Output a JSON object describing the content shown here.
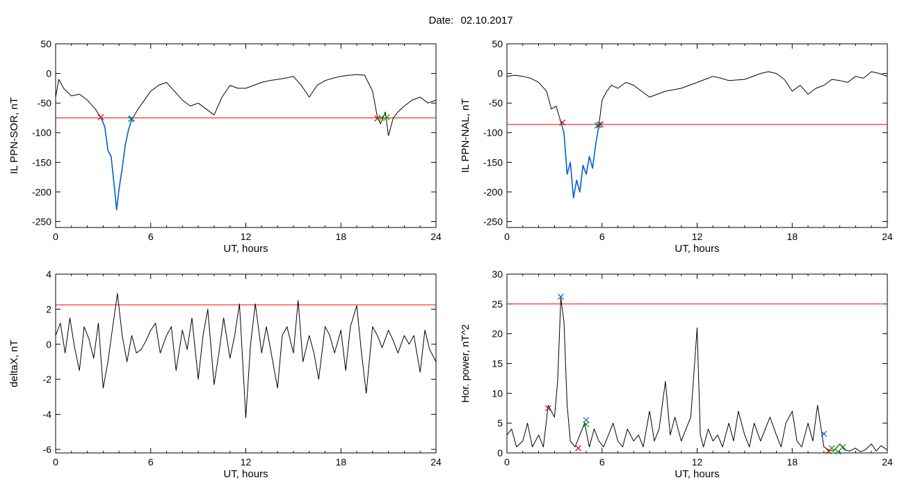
{
  "figure": {
    "date_label": "Date:",
    "date_value": "02.10.2017"
  },
  "chart_data": [
    {
      "type": "line",
      "xlabel": "UT, hours",
      "ylabel": "IL PPN-SOR, nT",
      "xlim": [
        0,
        24
      ],
      "ylim": [
        -260,
        50
      ],
      "xticks": [
        0,
        6,
        12,
        18,
        24
      ],
      "yticks": [
        50,
        0,
        -50,
        -100,
        -150,
        -200,
        -250
      ],
      "threshold": -75,
      "threshold_color": "#ff0000",
      "series": [
        {
          "color": "#000000",
          "x": [
            0,
            0.2,
            0.5,
            1.0,
            1.5,
            2.0,
            2.5,
            2.85,
            3.1,
            3.3,
            3.5,
            3.7,
            3.85,
            4.0,
            4.2,
            4.4,
            4.6,
            4.8,
            5.2,
            5.6,
            6.0,
            6.5,
            7.0,
            7.5,
            8.0,
            8.5,
            9.0,
            9.5,
            10.0,
            10.5,
            11.0,
            11.5,
            12.0,
            12.5,
            13.0,
            13.5,
            14.0,
            14.5,
            15.0,
            15.5,
            16.0,
            16.5,
            17.0,
            17.5,
            18.0,
            18.5,
            19.0,
            19.5,
            20.0,
            20.3,
            20.5,
            20.8,
            21.0,
            21.3,
            21.6,
            22.0,
            22.5,
            23.0,
            23.5,
            24.0
          ],
          "values": [
            -40,
            -10,
            -25,
            -38,
            -35,
            -45,
            -60,
            -74,
            -90,
            -130,
            -140,
            -190,
            -230,
            -195,
            -160,
            -120,
            -95,
            -78,
            -60,
            -45,
            -30,
            -20,
            -15,
            -30,
            -45,
            -55,
            -50,
            -60,
            -70,
            -40,
            -20,
            -25,
            -25,
            -20,
            -15,
            -12,
            -10,
            -8,
            -5,
            -20,
            -40,
            -20,
            -12,
            -8,
            -5,
            -3,
            -2,
            -3,
            -30,
            -74,
            -85,
            -65,
            -105,
            -75,
            -65,
            -55,
            -45,
            -40,
            -50,
            -45
          ]
        },
        {
          "color": "#0060d0",
          "x": [
            2.85,
            3.1,
            3.3,
            3.5,
            3.7,
            3.85,
            4.0,
            4.2,
            4.4,
            4.6,
            4.8
          ],
          "values": [
            -74,
            -90,
            -130,
            -140,
            -190,
            -230,
            -195,
            -160,
            -120,
            -95,
            -78
          ]
        }
      ],
      "markers": [
        {
          "x": 2.85,
          "y": -74,
          "color": "#d00000"
        },
        {
          "x": 4.75,
          "y": -77,
          "color": "#00a000"
        },
        {
          "x": 4.8,
          "y": -76,
          "color": "#0060d0"
        },
        {
          "x": 20.3,
          "y": -76,
          "color": "#d00000"
        },
        {
          "x": 20.55,
          "y": -75,
          "color": "#00a000"
        },
        {
          "x": 20.9,
          "y": -74,
          "color": "#00a000"
        }
      ]
    },
    {
      "type": "line",
      "xlabel": "UT, hours",
      "ylabel": "IL PPN-NAL, nT",
      "xlim": [
        0,
        24
      ],
      "ylim": [
        -260,
        50
      ],
      "xticks": [
        0,
        6,
        12,
        18,
        24
      ],
      "yticks": [
        50,
        0,
        -50,
        -100,
        -150,
        -200,
        -250
      ],
      "threshold": -86,
      "threshold_color": "#ff0000",
      "series": [
        {
          "color": "#000000",
          "x": [
            0,
            0.5,
            1.0,
            1.5,
            2.0,
            2.5,
            2.8,
            3.1,
            3.4,
            3.6,
            3.8,
            4.0,
            4.2,
            4.4,
            4.6,
            4.8,
            5.0,
            5.2,
            5.4,
            5.6,
            5.8,
            6.0,
            6.3,
            6.6,
            7.0,
            7.5,
            8.0,
            8.5,
            9.0,
            9.5,
            10.0,
            11.0,
            12.0,
            12.5,
            13.0,
            13.5,
            14.0,
            15.0,
            16.0,
            16.5,
            17.0,
            17.5,
            18.0,
            18.5,
            19.0,
            19.5,
            20.0,
            20.5,
            21.0,
            21.5,
            22.0,
            22.5,
            23.0,
            23.5,
            24.0
          ],
          "values": [
            -5,
            -3,
            -5,
            -8,
            -15,
            -30,
            -60,
            -55,
            -82,
            -100,
            -170,
            -150,
            -210,
            -180,
            -200,
            -155,
            -170,
            -140,
            -160,
            -120,
            -88,
            -45,
            -30,
            -20,
            -25,
            -15,
            -20,
            -30,
            -40,
            -35,
            -30,
            -25,
            -15,
            -10,
            -5,
            -8,
            -12,
            -10,
            0,
            3,
            0,
            -10,
            -30,
            -20,
            -35,
            -25,
            -20,
            -10,
            -12,
            -15,
            -5,
            -8,
            3,
            0,
            -5
          ]
        },
        {
          "color": "#0060d0",
          "x": [
            3.4,
            3.6,
            3.8,
            4.0,
            4.2,
            4.4,
            4.6,
            4.8,
            5.0,
            5.2,
            5.4,
            5.6,
            5.8
          ],
          "values": [
            -82,
            -100,
            -170,
            -150,
            -210,
            -180,
            -200,
            -155,
            -170,
            -140,
            -160,
            -120,
            -88
          ]
        }
      ],
      "markers": [
        {
          "x": 3.5,
          "y": -83,
          "color": "#d00000"
        },
        {
          "x": 5.7,
          "y": -88,
          "color": "#00a000"
        },
        {
          "x": 5.8,
          "y": -87,
          "color": "#0060d0"
        },
        {
          "x": 5.9,
          "y": -86,
          "color": "#d00000"
        }
      ]
    },
    {
      "type": "line",
      "xlabel": "UT, hours",
      "ylabel": "deltaX, nT",
      "xlim": [
        0,
        24
      ],
      "ylim": [
        -6.2,
        4
      ],
      "xticks": [
        0,
        6,
        12,
        18,
        24
      ],
      "yticks": [
        4,
        2,
        0,
        -2,
        -4,
        -6
      ],
      "threshold": 2.25,
      "threshold_color": "#ff0000",
      "series": [
        {
          "color": "#000000",
          "x": [
            0,
            0.3,
            0.6,
            0.9,
            1.2,
            1.5,
            1.8,
            2.1,
            2.4,
            2.7,
            3.0,
            3.3,
            3.6,
            3.9,
            4.2,
            4.5,
            4.8,
            5.1,
            5.4,
            5.7,
            6.0,
            6.3,
            6.6,
            7.0,
            7.3,
            7.6,
            8.0,
            8.3,
            8.6,
            9.0,
            9.3,
            9.6,
            10.0,
            10.3,
            10.6,
            11.0,
            11.3,
            11.6,
            12.0,
            12.3,
            12.6,
            13.0,
            13.3,
            13.6,
            14.0,
            14.3,
            14.6,
            15.0,
            15.3,
            15.6,
            16.0,
            16.3,
            16.6,
            17.0,
            17.3,
            17.6,
            18.0,
            18.3,
            18.6,
            19.0,
            19.3,
            19.6,
            20.0,
            20.3,
            20.6,
            21.0,
            21.3,
            21.6,
            22.0,
            22.3,
            22.6,
            23.0,
            23.3,
            23.6,
            24.0
          ],
          "values": [
            0.5,
            1.2,
            -0.5,
            1.5,
            -0.2,
            -1.5,
            1.0,
            0.3,
            -0.8,
            1.2,
            -2.5,
            -1.0,
            1.0,
            2.9,
            0.5,
            -1.0,
            0.5,
            -0.5,
            -0.3,
            0.2,
            0.8,
            1.2,
            -0.5,
            0.5,
            1.0,
            -1.5,
            0.8,
            -0.3,
            1.5,
            -2.0,
            0.5,
            2.0,
            -2.3,
            -0.5,
            1.5,
            -0.8,
            0.5,
            2.3,
            -4.2,
            0.0,
            2.3,
            -0.5,
            1.0,
            -0.5,
            -2.5,
            0.5,
            1.0,
            -0.5,
            2.5,
            -1.0,
            0.5,
            -0.5,
            -2.0,
            1.0,
            0.5,
            -0.5,
            0.8,
            -1.5,
            1.0,
            2.2,
            -0.5,
            -2.8,
            1.0,
            0.5,
            -0.2,
            0.8,
            0.2,
            -0.5,
            0.5,
            0.0,
            0.5,
            -1.6,
            0.8,
            -0.3,
            -1.0
          ]
        }
      ],
      "markers": []
    },
    {
      "type": "line",
      "xlabel": "UT, hours",
      "ylabel": "Hor. power, nT^2",
      "xlim": [
        0,
        24
      ],
      "ylim": [
        0,
        30
      ],
      "xticks": [
        0,
        6,
        12,
        18,
        24
      ],
      "yticks": [
        30,
        25,
        20,
        15,
        10,
        5,
        0
      ],
      "threshold": 25,
      "threshold_color": "#ff0000",
      "series": [
        {
          "color": "#000000",
          "x": [
            0,
            0.3,
            0.6,
            1.0,
            1.3,
            1.6,
            2.0,
            2.3,
            2.6,
            3.0,
            3.2,
            3.4,
            3.6,
            3.8,
            4.0,
            4.3,
            4.6,
            4.9,
            5.2,
            5.5,
            5.8,
            6.1,
            6.4,
            6.7,
            7.0,
            7.3,
            7.6,
            8.0,
            8.3,
            8.6,
            9.0,
            9.3,
            9.6,
            10.0,
            10.3,
            10.6,
            11.0,
            11.3,
            11.6,
            12.0,
            12.2,
            12.4,
            12.7,
            13.0,
            13.3,
            13.6,
            14.0,
            14.3,
            14.6,
            15.0,
            15.3,
            15.6,
            16.0,
            16.3,
            16.6,
            17.0,
            17.3,
            17.6,
            18.0,
            18.3,
            18.6,
            19.0,
            19.3,
            19.6,
            20.0,
            20.3,
            20.6,
            21.0,
            21.3,
            21.6,
            22.0,
            22.3,
            22.6,
            23.0,
            23.3,
            23.6,
            24.0
          ],
          "values": [
            3,
            4,
            1,
            2,
            5,
            1,
            3,
            1,
            8,
            6,
            12,
            26,
            22,
            8,
            2,
            1,
            3,
            5,
            1,
            4,
            2,
            1,
            3,
            5,
            2,
            1,
            4,
            2,
            3,
            1,
            7,
            2,
            4,
            12,
            3,
            6,
            2,
            4,
            6,
            21,
            3,
            1,
            4,
            2,
            3,
            1,
            5,
            2,
            7,
            3,
            1,
            5,
            2,
            4,
            6,
            3,
            1,
            5,
            7,
            2,
            1,
            5,
            2,
            8,
            1,
            0.5,
            0.3,
            1.5,
            0.5,
            0.3,
            0.8,
            0.2,
            0.5,
            1.5,
            0.3,
            1.2,
            0.5
          ]
        }
      ],
      "markers": [
        {
          "x": 2.6,
          "y": 7.5,
          "color": "#d00000"
        },
        {
          "x": 3.4,
          "y": 26.2,
          "color": "#0060d0"
        },
        {
          "x": 4.5,
          "y": 0.8,
          "color": "#d00000"
        },
        {
          "x": 5.0,
          "y": 5.5,
          "color": "#0060d0"
        },
        {
          "x": 5.0,
          "y": 4.8,
          "color": "#00a000"
        },
        {
          "x": 20.0,
          "y": 3.2,
          "color": "#0060d0"
        },
        {
          "x": 20.3,
          "y": 0.3,
          "color": "#d00000"
        },
        {
          "x": 20.5,
          "y": 0.8,
          "color": "#00a000"
        },
        {
          "x": 20.9,
          "y": 0.2,
          "color": "#00a000"
        },
        {
          "x": 21.2,
          "y": 1.0,
          "color": "#00a000"
        }
      ]
    }
  ]
}
